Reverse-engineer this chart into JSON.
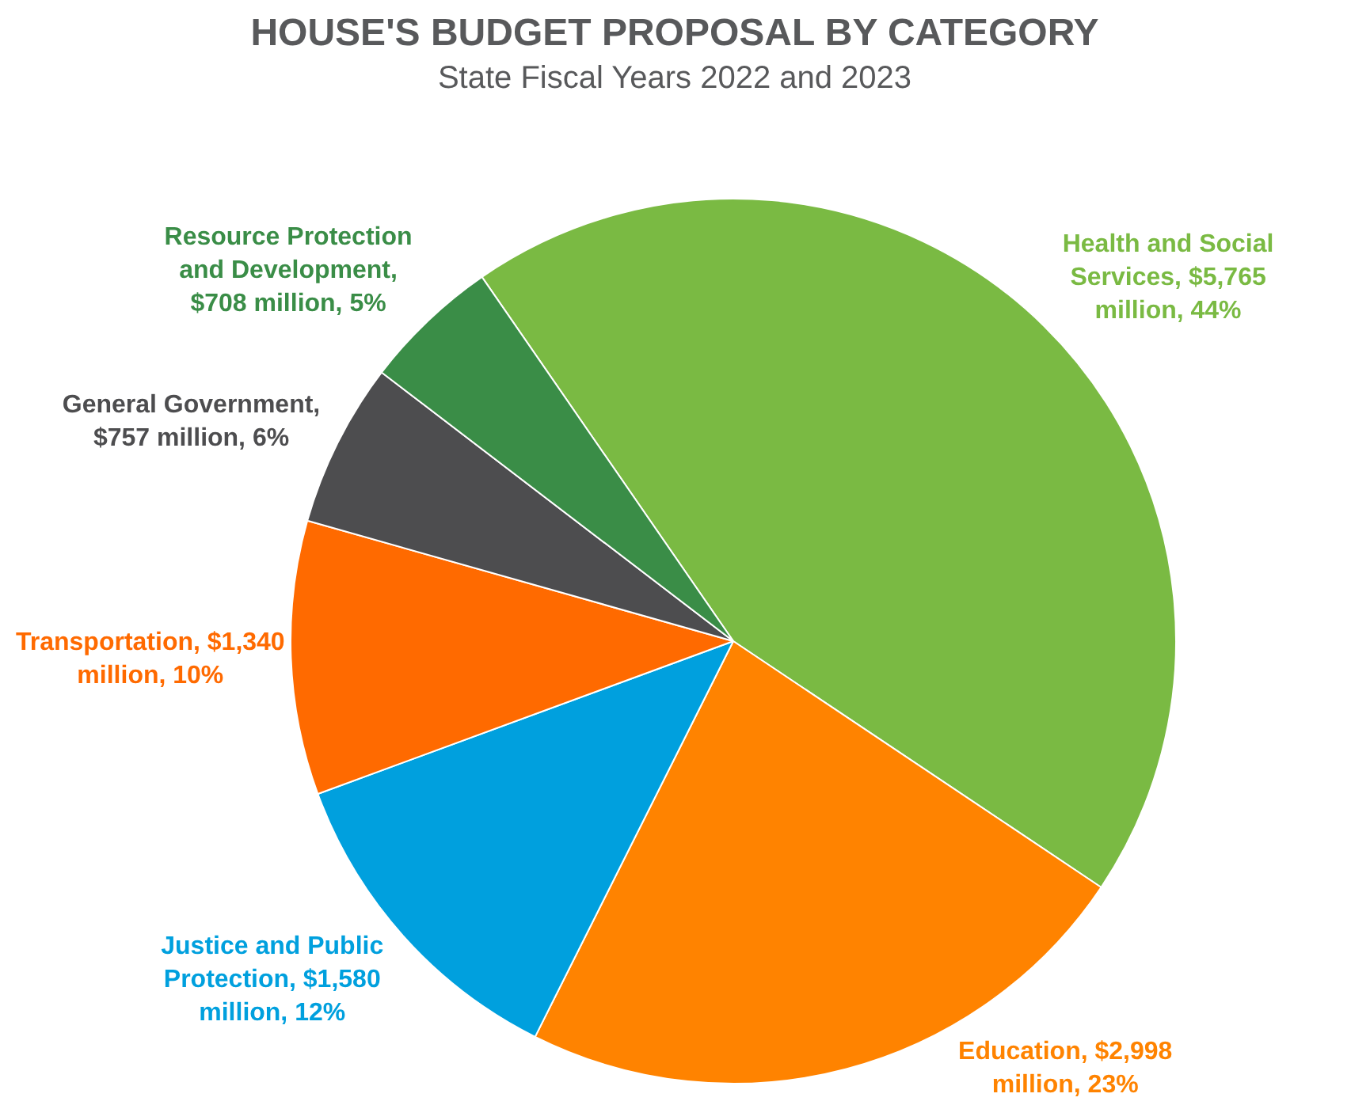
{
  "chart_data": {
    "type": "pie",
    "title": "HOUSE'S BUDGET PROPOSAL BY CATEGORY",
    "subtitle": "State Fiscal Years 2022 and 2023",
    "categories": [
      "Health and Social Services, $5,765 million, 44%",
      "Education, $2,998 million, 23%",
      "Justice and Public Protection, $1,580 million, 12%",
      "Transportation, $1,340 million, 10%",
      "General Government, $757 million, 6%",
      "Resource Protection and Development, $708 million, 5%"
    ],
    "values": [
      44,
      23,
      12,
      10,
      6,
      5
    ],
    "colors": [
      "#7aba43",
      "#ff8300",
      "#00a0de",
      "#ff6a00",
      "#4d4d4f",
      "#3a8d47"
    ],
    "legend": false
  }
}
